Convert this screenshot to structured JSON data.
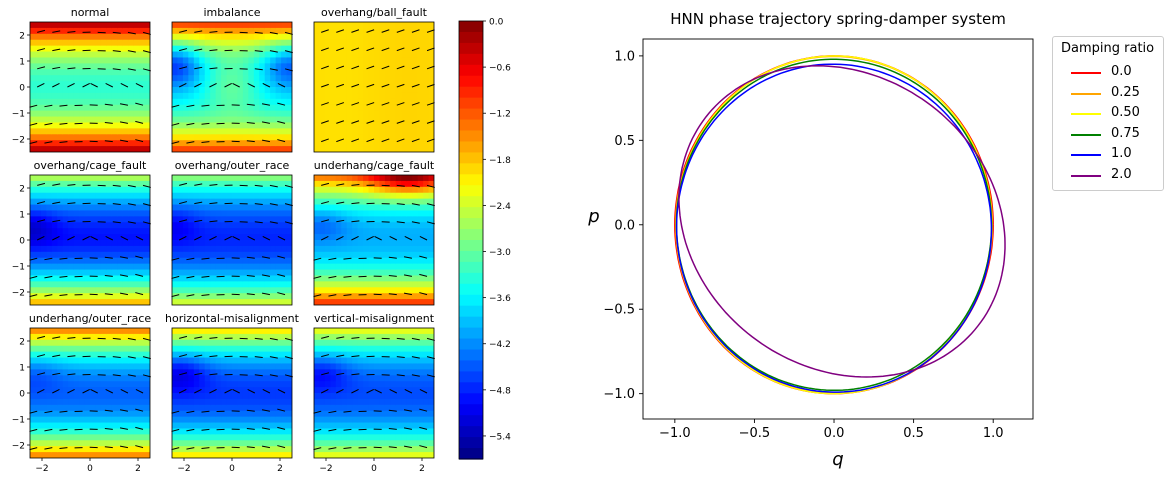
{
  "chart_data": [
    {
      "type": "heatmap",
      "colorbar": {
        "ticks": [
          "0.0",
          "−0.6",
          "−1.2",
          "−1.8",
          "−2.4",
          "−3.0",
          "−3.6",
          "−4.2",
          "−4.8",
          "−5.4"
        ],
        "range": [
          -5.7,
          0.0
        ],
        "colormap": "jet"
      },
      "x_ticks": [
        "−2",
        "0",
        "2"
      ],
      "y_ticks": [
        "2",
        "1",
        "0",
        "−1",
        "−2"
      ],
      "xlim": [
        -2.5,
        2.5
      ],
      "ylim": [
        -2.5,
        2.5
      ],
      "panels": [
        {
          "title": "normal",
          "kind": "normal"
        },
        {
          "title": "imbalance",
          "kind": "imbalance"
        },
        {
          "title": "overhang/ball_fault",
          "kind": "ball"
        },
        {
          "title": "overhang/cage_fault",
          "kind": "cage"
        },
        {
          "title": "overhang/outer_race",
          "kind": "outer"
        },
        {
          "title": "underhang/cage_fault",
          "kind": "ucage"
        },
        {
          "title": "underhang/outer_race",
          "kind": "uouter"
        },
        {
          "title": "horizontal-misalignment",
          "kind": "hmis"
        },
        {
          "title": "vertical-misalignment",
          "kind": "vmis"
        }
      ]
    },
    {
      "type": "line",
      "title": "HNN phase trajectory spring-damper system",
      "xlabel": "q",
      "ylabel": "p",
      "xlim": [
        -1.2,
        1.25
      ],
      "ylim": [
        -1.15,
        1.1
      ],
      "x_ticks": [
        "−1.0",
        "−0.5",
        "0.0",
        "0.5",
        "1.0"
      ],
      "y_ticks": [
        "1.0",
        "0.5",
        "0.0",
        "−0.5",
        "−1.0"
      ],
      "legend": {
        "title": "Damping ratio",
        "position": "outside-right"
      },
      "series": [
        {
          "name": "0.0",
          "color": "#ff0000",
          "cx": 0.0,
          "cy": 0.0,
          "rx": 1.0,
          "ry": 1.0,
          "tilt": 0.0,
          "skew": 0.0
        },
        {
          "name": "0.25",
          "color": "#ffa500",
          "cx": 0.0,
          "cy": 0.0,
          "rx": 0.995,
          "ry": 0.997,
          "tilt": 0.04,
          "skew": 0.0
        },
        {
          "name": "0.50",
          "color": "#ffff00",
          "cx": 0.0,
          "cy": 0.0,
          "rx": 0.99,
          "ry": 1.0,
          "tilt": 0.08,
          "skew": 0.0
        },
        {
          "name": "0.75",
          "color": "#008000",
          "cx": 0.0,
          "cy": 0.0,
          "rx": 0.99,
          "ry": 0.98,
          "tilt": 0.12,
          "skew": 0.0
        },
        {
          "name": "1.0",
          "color": "#0000ff",
          "cx": 0.0,
          "cy": -0.02,
          "rx": 0.99,
          "ry": 0.97,
          "tilt": 0.22,
          "skew": 0.0
        },
        {
          "name": "2.0",
          "color": "#800080",
          "cx": 0.05,
          "cy": 0.02,
          "rx": 1.06,
          "ry": 0.88,
          "tilt": 0.48,
          "skew": 0.0
        }
      ]
    }
  ]
}
